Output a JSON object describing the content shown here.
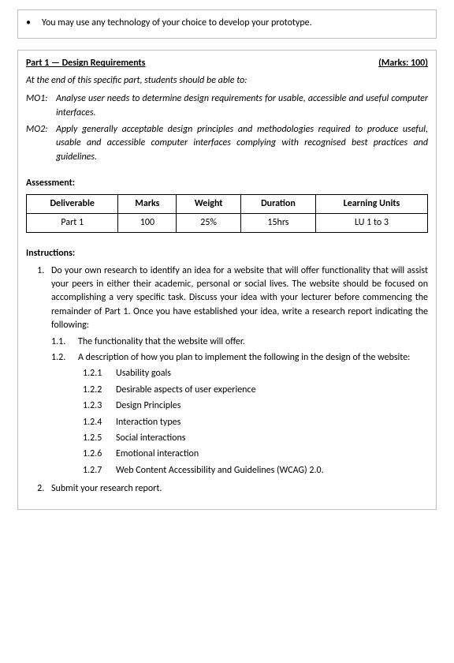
{
  "top_box": {
    "bullet": "You may use any technology of your choice to develop your prototype."
  },
  "part_header": {
    "left": "Part 1 — Design Requirements",
    "right": "(Marks: 100)"
  },
  "intro": "At the end of this specific part, students should be able to:",
  "mo1": {
    "label": "MO1:",
    "text": "Analyse user needs to determine design requirements for usable, accessible and useful computer interfaces."
  },
  "mo2": {
    "label": "MO2:",
    "text": "Apply generally acceptable design principles and methodologies required to produce useful, usable and accessible computer interfaces complying with recognised best practices and guidelines."
  },
  "assessment_title": "Assessment:",
  "table": {
    "columns": [
      "Deliverable",
      "Marks",
      "Weight",
      "Duration",
      "Learning Units"
    ],
    "row": [
      "Part 1",
      "100",
      "25%",
      "15hrs",
      "LU 1 to 3"
    ]
  },
  "instructions_title": "Instructions:",
  "instr1": "Do your own research to identify an idea for a website that will offer functionality that will assist your peers in either their academic, personal or social lives. The website should be focused on accomplishing a very specific task. Discuss your idea with your lecturer before commencing the remainder of Part 1. Once you have established your idea, write a research report indicating the following:",
  "sub11_label": "1.1.",
  "sub11": "The functionality that the website will offer.",
  "sub12_label": "1.2.",
  "sub12": "A description of how you plan to implement the following in the design of the website:",
  "s121_label": "1.2.1",
  "s121": "Usability goals",
  "s122_label": "1.2.2",
  "s122": "Desirable aspects of user experience",
  "s123_label": "1.2.3",
  "s123": "Design Principles",
  "s124_label": "1.2.4",
  "s124": "Interaction types",
  "s125_label": "1.2.5",
  "s125": "Social interactions",
  "s126_label": "1.2.6",
  "s126": "Emotional interaction",
  "s127_label": "1.2.7",
  "s127": "Web Content Accessibility and Guidelines (WCAG) 2.0.",
  "instr2": "Submit your research report."
}
